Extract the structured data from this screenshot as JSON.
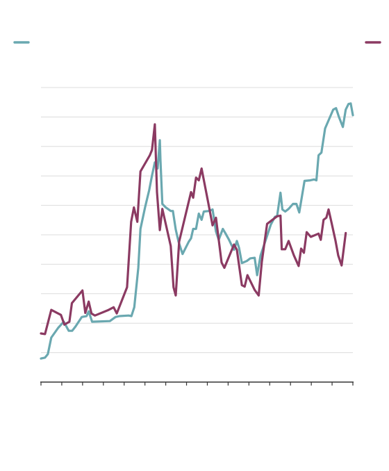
{
  "chart_data": {
    "type": "line",
    "title": "",
    "xlabel": "",
    "ylabel": "",
    "grid": true,
    "legend_position": "top",
    "ylim": [
      0,
      100
    ],
    "x_range": [
      0,
      100
    ],
    "x_tick_count": 16,
    "y_gridline_count": 10,
    "series": [
      {
        "legend_side": "left",
        "color": "#6aa8b0",
        "points": [
          [
            0,
            8.0
          ],
          [
            1.3,
            8.3
          ],
          [
            2.2,
            9.5
          ],
          [
            3.3,
            15.1
          ],
          [
            5.5,
            18.4
          ],
          [
            7.3,
            20.5
          ],
          [
            8.9,
            17.4
          ],
          [
            10.0,
            17.4
          ],
          [
            11.1,
            18.9
          ],
          [
            13.1,
            22.1
          ],
          [
            14.6,
            22.4
          ],
          [
            15.3,
            24.0
          ],
          [
            16.4,
            20.5
          ],
          [
            22.1,
            20.7
          ],
          [
            23.9,
            22.1
          ],
          [
            25.2,
            22.4
          ],
          [
            28.1,
            22.6
          ],
          [
            29.0,
            22.4
          ],
          [
            29.9,
            25.4
          ],
          [
            31.2,
            38.8
          ],
          [
            31.9,
            52.0
          ],
          [
            33.4,
            59.5
          ],
          [
            34.7,
            65.2
          ],
          [
            35.6,
            70.1
          ],
          [
            36.5,
            74.6
          ],
          [
            37.4,
            72.5
          ],
          [
            38.1,
            82.1
          ],
          [
            38.3,
            75.3
          ],
          [
            38.9,
            60.5
          ],
          [
            40.0,
            59.3
          ],
          [
            41.6,
            58.1
          ],
          [
            42.3,
            58.1
          ],
          [
            43.2,
            51.8
          ],
          [
            44.1,
            47.7
          ],
          [
            45.4,
            43.5
          ],
          [
            47.4,
            47.7
          ],
          [
            48.1,
            48.8
          ],
          [
            48.8,
            52.0
          ],
          [
            49.7,
            52.0
          ],
          [
            50.6,
            57.2
          ],
          [
            51.5,
            55.1
          ],
          [
            52.2,
            57.9
          ],
          [
            53.9,
            58.1
          ],
          [
            55.0,
            58.6
          ],
          [
            56.1,
            51.1
          ],
          [
            57.0,
            48.3
          ],
          [
            58.3,
            52.0
          ],
          [
            59.2,
            50.4
          ],
          [
            60.3,
            48.3
          ],
          [
            61.0,
            46.7
          ],
          [
            61.9,
            44.9
          ],
          [
            62.8,
            47.9
          ],
          [
            63.5,
            45.6
          ],
          [
            64.4,
            40.4
          ],
          [
            66.0,
            41.1
          ],
          [
            67.1,
            42.0
          ],
          [
            68.5,
            42.2
          ],
          [
            69.3,
            36.3
          ],
          [
            70.4,
            43.0
          ],
          [
            71.3,
            45.8
          ],
          [
            73.7,
            53.5
          ],
          [
            75.0,
            56.1
          ],
          [
            75.7,
            56.3
          ],
          [
            76.8,
            64.3
          ],
          [
            77.4,
            58.6
          ],
          [
            78.3,
            57.9
          ],
          [
            79.4,
            58.8
          ],
          [
            80.8,
            60.5
          ],
          [
            81.9,
            60.5
          ],
          [
            82.8,
            57.6
          ],
          [
            84.5,
            68.3
          ],
          [
            86.3,
            68.5
          ],
          [
            87.6,
            68.8
          ],
          [
            88.3,
            68.5
          ],
          [
            89.0,
            77.0
          ],
          [
            89.9,
            77.9
          ],
          [
            91.1,
            86.1
          ],
          [
            93.7,
            92.5
          ],
          [
            94.6,
            93.0
          ],
          [
            95.5,
            90.1
          ],
          [
            96.8,
            86.6
          ],
          [
            97.7,
            92.5
          ],
          [
            98.6,
            94.4
          ],
          [
            99.3,
            94.6
          ],
          [
            100,
            90.6
          ]
        ]
      },
      {
        "legend_side": "right",
        "color": "#8b3a62",
        "points": [
          [
            0,
            16.5
          ],
          [
            1.3,
            16.3
          ],
          [
            3.3,
            24.5
          ],
          [
            6.4,
            22.8
          ],
          [
            7.5,
            19.5
          ],
          [
            9.1,
            20.5
          ],
          [
            9.9,
            26.8
          ],
          [
            13.3,
            31.1
          ],
          [
            14.2,
            23.5
          ],
          [
            15.3,
            27.3
          ],
          [
            16.2,
            23.3
          ],
          [
            17.3,
            22.6
          ],
          [
            21.7,
            24.5
          ],
          [
            23.3,
            25.4
          ],
          [
            24.3,
            23.3
          ],
          [
            27.6,
            32.2
          ],
          [
            28.9,
            54.4
          ],
          [
            29.8,
            59.3
          ],
          [
            30.9,
            54.4
          ],
          [
            31.9,
            71.5
          ],
          [
            34.9,
            77.0
          ],
          [
            35.6,
            78.8
          ],
          [
            36.5,
            87.5
          ],
          [
            37.2,
            64.5
          ],
          [
            38.1,
            51.6
          ],
          [
            38.9,
            58.8
          ],
          [
            41.6,
            46.2
          ],
          [
            42.5,
            32.2
          ],
          [
            43.2,
            29.4
          ],
          [
            44.3,
            47.7
          ],
          [
            48.1,
            64.5
          ],
          [
            48.8,
            62.6
          ],
          [
            49.7,
            69.4
          ],
          [
            50.6,
            68.5
          ],
          [
            51.5,
            72.5
          ],
          [
            53.5,
            61.6
          ],
          [
            55.0,
            53.2
          ],
          [
            56.1,
            55.8
          ],
          [
            57.9,
            40.6
          ],
          [
            58.8,
            38.8
          ],
          [
            61.9,
            46.7
          ],
          [
            62.8,
            44.9
          ],
          [
            64.4,
            32.9
          ],
          [
            65.3,
            32.4
          ],
          [
            66.2,
            36.3
          ],
          [
            68.5,
            31.3
          ],
          [
            69.8,
            29.4
          ],
          [
            70.8,
            40.8
          ],
          [
            72.5,
            53.7
          ],
          [
            75.7,
            56.3
          ],
          [
            76.8,
            56.5
          ],
          [
            77.2,
            45.1
          ],
          [
            78.3,
            45.1
          ],
          [
            79.4,
            47.9
          ],
          [
            81.1,
            43.0
          ],
          [
            82.6,
            39.4
          ],
          [
            83.4,
            45.3
          ],
          [
            84.3,
            43.9
          ],
          [
            85.2,
            50.9
          ],
          [
            86.5,
            49.3
          ],
          [
            89.0,
            50.4
          ],
          [
            89.7,
            48.3
          ],
          [
            90.6,
            55.1
          ],
          [
            91.5,
            55.8
          ],
          [
            92.2,
            58.6
          ],
          [
            93.2,
            53.9
          ],
          [
            94.4,
            48.1
          ],
          [
            95.3,
            43.0
          ],
          [
            96.4,
            39.6
          ],
          [
            97.7,
            50.6
          ]
        ]
      }
    ]
  }
}
